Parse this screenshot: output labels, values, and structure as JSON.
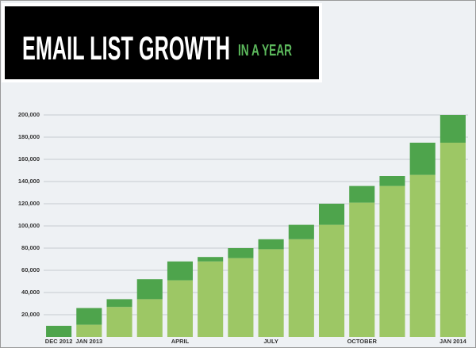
{
  "chart_data": {
    "type": "stacked_bar",
    "title": "EMAIL LIST GROWTH",
    "subtitle": "IN A YEAR",
    "categories": [
      "DEC 2012",
      "JAN 2013",
      null,
      null,
      "APRIL",
      null,
      null,
      "JULY",
      null,
      null,
      "OCTOBER",
      null,
      null,
      "JAN 2014"
    ],
    "series": [
      {
        "color": "#9dc765",
        "values": [
          0,
          11000,
          27000,
          34000,
          51000,
          68000,
          71000,
          79000,
          88000,
          101000,
          121000,
          136000,
          146000,
          175000
        ]
      },
      {
        "color": "#4ea44c",
        "values": [
          10000,
          15000,
          7000,
          18000,
          17000,
          4000,
          9000,
          9000,
          13000,
          19000,
          15000,
          9000,
          29000,
          25000
        ]
      }
    ],
    "ylim": [
      0,
      210000
    ],
    "yticks": [
      {
        "value": 20000,
        "label": "20,000"
      },
      {
        "value": 40000,
        "label": "40,000"
      },
      {
        "value": 60000,
        "label": "60,000"
      },
      {
        "value": 80000,
        "label": "80,000"
      },
      {
        "value": 100000,
        "label": "100,000"
      },
      {
        "value": 120000,
        "label": "120,000"
      },
      {
        "value": 140000,
        "label": "140,000"
      },
      {
        "value": 160000,
        "label": "160,000"
      },
      {
        "value": 180000,
        "label": "180,000"
      },
      {
        "value": 200000,
        "label": "200,000"
      }
    ],
    "grid": true
  }
}
